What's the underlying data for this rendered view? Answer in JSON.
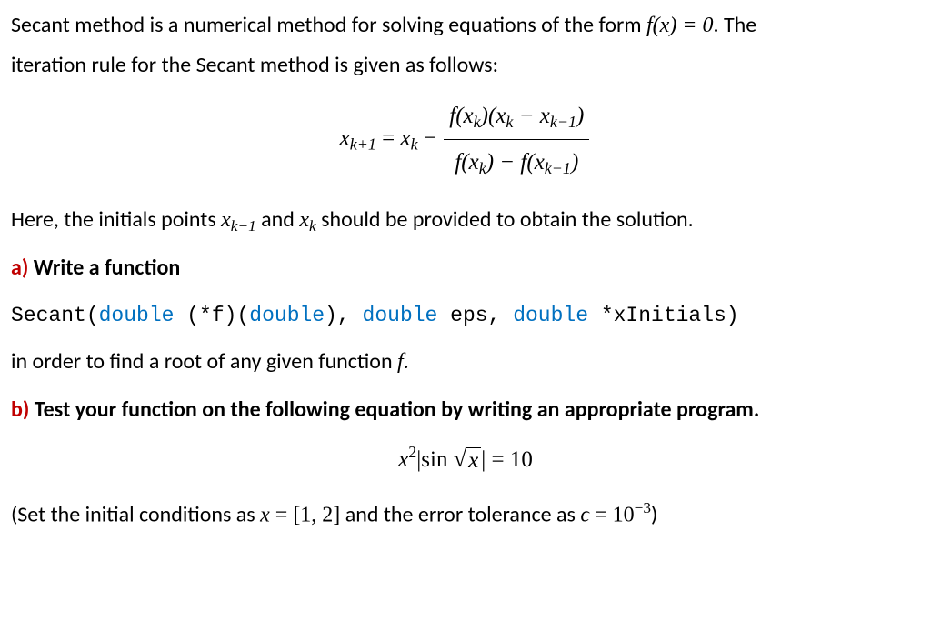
{
  "intro": {
    "line1_pre": "Secant method is a numerical method for solving equations of the form ",
    "line1_eq": "f(x) = 0",
    "line1_post": ". The",
    "line2": "iteration rule for the Secant method is given as follows:"
  },
  "formula": {
    "lhs_var": "x",
    "lhs_sub": "k+1",
    "eq": " = ",
    "rhs_var": "x",
    "rhs_sub": "k",
    "minus": " − ",
    "num": "f(xₖ)(xₖ − xₖ₋₁)",
    "den": "f(xₖ) − f(xₖ₋₁)"
  },
  "initials": {
    "pre": "Here, the initials points ",
    "x1_var": "x",
    "x1_sub": "k−1",
    "and": " and ",
    "x2_var": "x",
    "x2_sub": "k",
    "post": " should be provided to obtain the solution."
  },
  "partA": {
    "label": "a)",
    "title": " Write a function",
    "code": {
      "t1": "Secant(",
      "kw1": "double",
      "t2": " (*f)(",
      "kw2": "double",
      "t3": "), ",
      "kw3": "double",
      "t4": " eps, ",
      "kw4": "double",
      "t5": " *xInitials)"
    },
    "post_pre": "in order to find a root of any given function ",
    "post_f": "f",
    "post_dot": "."
  },
  "partB": {
    "label": "b)",
    "title": " Test your function on the following equation by writing an appropriate program.",
    "eq": {
      "x": "x",
      "sq": "2",
      "abs_open": "|",
      "sin": "sin ",
      "rad": "x",
      "abs_close": "|",
      "eq": " = ",
      "rhs": "10"
    },
    "footer_pre": "(Set the initial conditions as ",
    "footer_x": "x",
    "footer_eq": " = [1, 2]",
    "footer_mid": " and the error tolerance as ",
    "footer_eps": "ϵ",
    "footer_eq2": " = 10",
    "footer_exp": "−3",
    "footer_close": ")"
  },
  "colors": {
    "red": "#c00000",
    "blue": "#0070c0",
    "text": "#000000",
    "bg": "#ffffff"
  }
}
